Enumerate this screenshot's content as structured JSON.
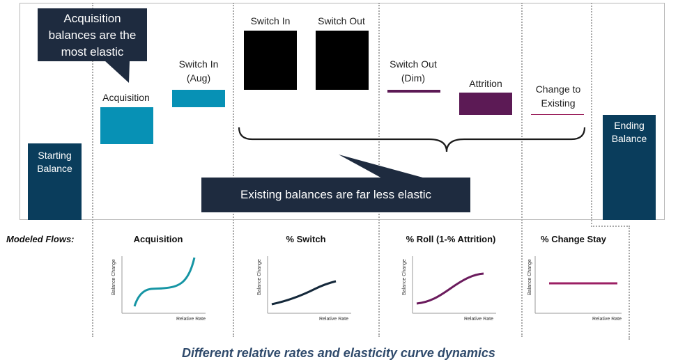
{
  "colors": {
    "navy": "#0a3d5c",
    "teal": "#0791b5",
    "black": "#000000",
    "purple": "#5c1a55",
    "crimson": "#9b1f5c",
    "callout_bg": "#1e2b3f",
    "curve_teal": "#1695a4",
    "curve_navy": "#14283a",
    "curve_purple": "#6b1b5d",
    "curve_magenta": "#9b1f63",
    "caption": "#2f4a6b"
  },
  "waterfall": {
    "starting_balance": "Starting\nBalance",
    "acquisition": "Acquisition",
    "switch_in_aug": "Switch In\n(Aug)",
    "switch_in": "Switch In",
    "switch_out": "Switch Out",
    "switch_out_dim": "Switch Out\n(Dim)",
    "attrition": "Attrition",
    "change_to_existing": "Change to\nExisting",
    "ending_balance": "Ending\nBalance"
  },
  "callouts": {
    "top": "Acquisition\nbalances are the\nmost elastic",
    "bottom": "Existing balances are far less elastic"
  },
  "modeled": {
    "title": "Modeled Flows:",
    "panels": [
      {
        "title": "Acquisition",
        "ylabel": "Balance Change",
        "xlabel": "Relative Rate",
        "color": "#1695a4"
      },
      {
        "title": "% Switch",
        "ylabel": "Balance Change",
        "xlabel": "Relative Rate",
        "color": "#14283a"
      },
      {
        "title": "% Roll (1-% Attrition)",
        "ylabel": "Balance Change",
        "xlabel": "Relative Rate",
        "color": "#6b1b5d"
      },
      {
        "title": "% Change Stay",
        "ylabel": "Balance Change",
        "xlabel": "Relative Rate",
        "color": "#9b1f63"
      }
    ]
  },
  "caption": "Different relative rates and elasticity curve dynamics"
}
